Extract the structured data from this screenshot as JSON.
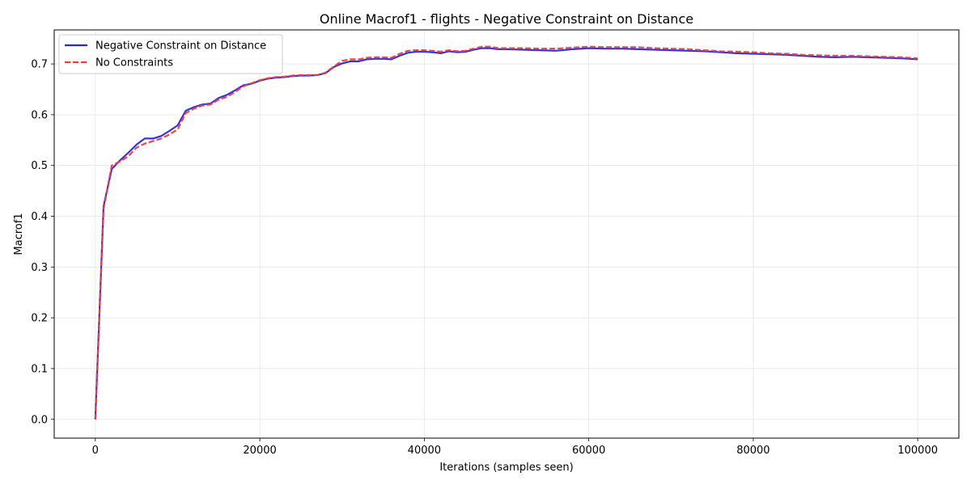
{
  "chart_data": {
    "type": "line",
    "title": "Online Macrof1 - flights - Negative Constraint on Distance",
    "xlabel": "Iterations (samples seen)",
    "ylabel": "Macrof1",
    "xlim": [
      -5000,
      105000
    ],
    "ylim": [
      -0.037,
      0.767
    ],
    "xticks": [
      0,
      20000,
      40000,
      60000,
      80000,
      100000
    ],
    "xtick_labels": [
      "0",
      "20000",
      "40000",
      "60000",
      "80000",
      "100000"
    ],
    "yticks": [
      0.0,
      0.1,
      0.2,
      0.3,
      0.4,
      0.5,
      0.6,
      0.7
    ],
    "ytick_labels": [
      "0.0",
      "0.1",
      "0.2",
      "0.3",
      "0.4",
      "0.5",
      "0.6",
      "0.7"
    ],
    "grid": true,
    "legend_position": "top-left",
    "x": [
      0,
      1000,
      2000,
      3000,
      4000,
      5000,
      6000,
      7000,
      8000,
      9000,
      10000,
      11000,
      12000,
      13000,
      14000,
      15000,
      16000,
      17000,
      18000,
      19000,
      20000,
      21000,
      22000,
      23000,
      24000,
      25000,
      26000,
      27000,
      28000,
      29000,
      30000,
      31000,
      32000,
      33000,
      34000,
      35000,
      36000,
      37000,
      38000,
      39000,
      40000,
      41000,
      42000,
      43000,
      44000,
      45000,
      46000,
      47000,
      48000,
      49000,
      50000,
      52000,
      54000,
      56000,
      58000,
      60000,
      62000,
      64000,
      66000,
      68000,
      70000,
      72000,
      74000,
      76000,
      78000,
      80000,
      82000,
      84000,
      86000,
      88000,
      90000,
      92000,
      94000,
      96000,
      98000,
      100000
    ],
    "series": [
      {
        "name": "Negative Constraint on Distance",
        "color": "#2828e0",
        "style": "solid",
        "values": [
          0.0,
          0.42,
          0.493,
          0.51,
          0.525,
          0.541,
          0.553,
          0.553,
          0.558,
          0.568,
          0.579,
          0.608,
          0.615,
          0.62,
          0.622,
          0.633,
          0.639,
          0.648,
          0.658,
          0.661,
          0.667,
          0.671,
          0.673,
          0.674,
          0.676,
          0.677,
          0.677,
          0.678,
          0.682,
          0.694,
          0.701,
          0.705,
          0.705,
          0.709,
          0.71,
          0.71,
          0.709,
          0.716,
          0.722,
          0.724,
          0.724,
          0.723,
          0.721,
          0.725,
          0.723,
          0.724,
          0.728,
          0.731,
          0.731,
          0.729,
          0.729,
          0.728,
          0.727,
          0.726,
          0.729,
          0.731,
          0.73,
          0.73,
          0.729,
          0.728,
          0.727,
          0.726,
          0.725,
          0.723,
          0.721,
          0.72,
          0.719,
          0.718,
          0.716,
          0.714,
          0.713,
          0.714,
          0.713,
          0.712,
          0.711,
          0.709
        ]
      },
      {
        "name": "No Constraints",
        "color": "#f03c3c",
        "style": "dashed",
        "values": [
          0.0,
          0.415,
          0.5,
          0.508,
          0.518,
          0.535,
          0.543,
          0.548,
          0.553,
          0.561,
          0.571,
          0.603,
          0.612,
          0.618,
          0.62,
          0.63,
          0.635,
          0.645,
          0.656,
          0.662,
          0.668,
          0.672,
          0.674,
          0.675,
          0.677,
          0.678,
          0.678,
          0.678,
          0.683,
          0.695,
          0.706,
          0.709,
          0.709,
          0.712,
          0.713,
          0.713,
          0.712,
          0.72,
          0.726,
          0.727,
          0.727,
          0.726,
          0.724,
          0.727,
          0.725,
          0.726,
          0.73,
          0.734,
          0.734,
          0.731,
          0.731,
          0.731,
          0.73,
          0.73,
          0.732,
          0.734,
          0.733,
          0.733,
          0.733,
          0.731,
          0.73,
          0.729,
          0.727,
          0.725,
          0.724,
          0.723,
          0.721,
          0.72,
          0.718,
          0.717,
          0.716,
          0.716,
          0.715,
          0.714,
          0.713,
          0.711
        ]
      }
    ]
  }
}
